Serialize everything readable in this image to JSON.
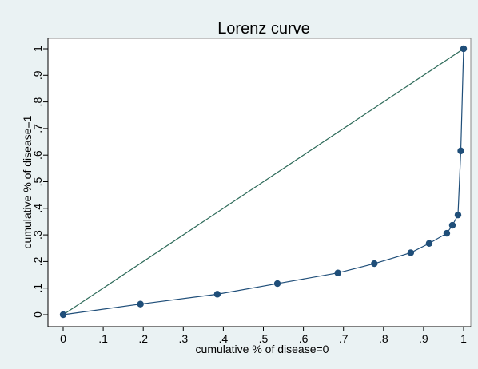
{
  "chart_data": {
    "type": "line",
    "title": "Lorenz curve",
    "xlabel": "cumulative % of disease=0",
    "ylabel": "cumulative % of disease=1",
    "xlim": [
      0,
      1
    ],
    "ylim": [
      0,
      1
    ],
    "x_ticks": [
      {
        "value": 0,
        "label": "0"
      },
      {
        "value": 0.1,
        "label": ".1"
      },
      {
        "value": 0.2,
        "label": ".2"
      },
      {
        "value": 0.3,
        "label": ".3"
      },
      {
        "value": 0.4,
        "label": ".4"
      },
      {
        "value": 0.5,
        "label": ".5"
      },
      {
        "value": 0.6,
        "label": ".6"
      },
      {
        "value": 0.7,
        "label": ".7"
      },
      {
        "value": 0.8,
        "label": ".8"
      },
      {
        "value": 0.9,
        "label": ".9"
      },
      {
        "value": 1,
        "label": "1"
      }
    ],
    "y_ticks": [
      {
        "value": 0,
        "label": "0"
      },
      {
        "value": 0.1,
        "label": ".1"
      },
      {
        "value": 0.2,
        "label": ".2"
      },
      {
        "value": 0.3,
        "label": ".3"
      },
      {
        "value": 0.4,
        "label": ".4"
      },
      {
        "value": 0.5,
        "label": ".5"
      },
      {
        "value": 0.6,
        "label": ".6"
      },
      {
        "value": 0.7,
        "label": ".7"
      },
      {
        "value": 0.8,
        "label": ".8"
      },
      {
        "value": 0.9,
        "label": ".9"
      },
      {
        "value": 1,
        "label": "1"
      }
    ],
    "grid": false,
    "legend": "none",
    "series": [
      {
        "style": "line",
        "color": "#2e6b5a",
        "x": [
          0,
          1
        ],
        "y": [
          0,
          1
        ]
      },
      {
        "style": "line-markers",
        "color": "#1f4e79",
        "x": [
          0,
          0.193,
          0.385,
          0.535,
          0.686,
          0.777,
          0.868,
          0.914,
          0.958,
          0.972,
          0.986,
          0.993,
          1.0
        ],
        "y": [
          0,
          0.04,
          0.077,
          0.117,
          0.157,
          0.192,
          0.233,
          0.268,
          0.306,
          0.336,
          0.375,
          0.616,
          1.0
        ]
      }
    ]
  },
  "colors": {
    "outer_background": "#eaf2f3",
    "plot_background": "#ffffff",
    "diagonal_line": "#2e6b5a",
    "curve": "#1f4e79"
  }
}
